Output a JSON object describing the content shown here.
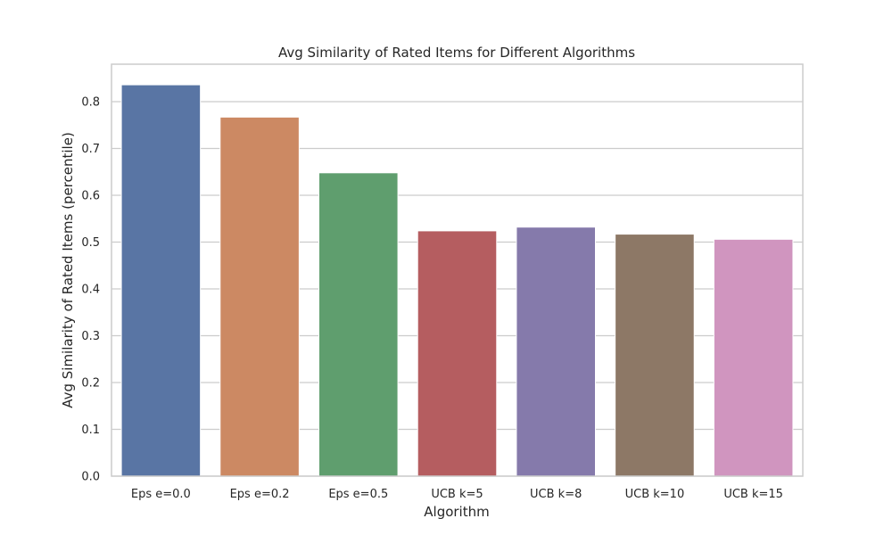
{
  "chart_data": {
    "type": "bar",
    "title": "Avg Similarity of Rated Items for Different Algorithms",
    "xlabel": "Algorithm",
    "ylabel": "Avg Similarity of Rated Items (percentile)",
    "categories": [
      "Eps e=0.0",
      "Eps e=0.2",
      "Eps e=0.5",
      "UCB k=5",
      "UCB k=8",
      "UCB k=10",
      "UCB k=15"
    ],
    "values": [
      0.836,
      0.767,
      0.648,
      0.524,
      0.532,
      0.517,
      0.506
    ],
    "colors": [
      "#5975a4",
      "#cc8963",
      "#5f9e6e",
      "#b55d60",
      "#857aab",
      "#8d7866",
      "#d095bf"
    ],
    "ylim": [
      0,
      0.88
    ],
    "yticks": [
      "0.0",
      "0.1",
      "0.2",
      "0.3",
      "0.4",
      "0.5",
      "0.6",
      "0.7",
      "0.8"
    ],
    "grid": true,
    "grid_color": "#cccccc",
    "background_color": "#ffffff"
  }
}
